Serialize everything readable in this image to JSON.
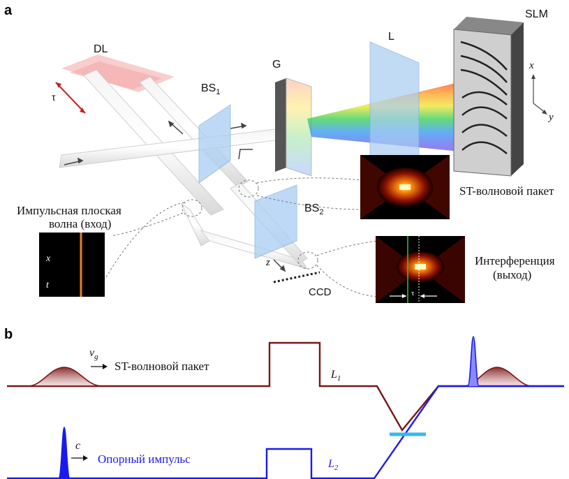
{
  "panel_a": {
    "letter": "a",
    "dl": "DL",
    "tau_left": "τ",
    "bs1": "BS",
    "bs1_sub": "1",
    "g": "G",
    "l": "L",
    "slm": "SLM",
    "axis_x": "x",
    "axis_y": "y",
    "bs2": "BS",
    "bs2_sub": "2",
    "z": "z",
    "ccd": "CCD",
    "input_line1": "Импульсная плоская",
    "input_line2": "волна (вход)",
    "input_img_x": "x",
    "input_img_t": "t",
    "st_packet": "ST-волновой пакет",
    "interference_line1": "Интерференция",
    "interference_line2": "(выход)",
    "tau_inset": "τ"
  },
  "panel_b": {
    "letter": "b",
    "vg": "v",
    "vg_sub": "g",
    "st_packet": "ST-волновой пакет",
    "l1": "L",
    "l1_sub": "1",
    "c": "c",
    "ref_pulse": "Опорный импульс",
    "l2": "L",
    "l2_sub": "2"
  },
  "colors": {
    "st_line": "#7a1616",
    "ref_line": "#1a1aee",
    "overlap_bar": "#39b6ee"
  }
}
